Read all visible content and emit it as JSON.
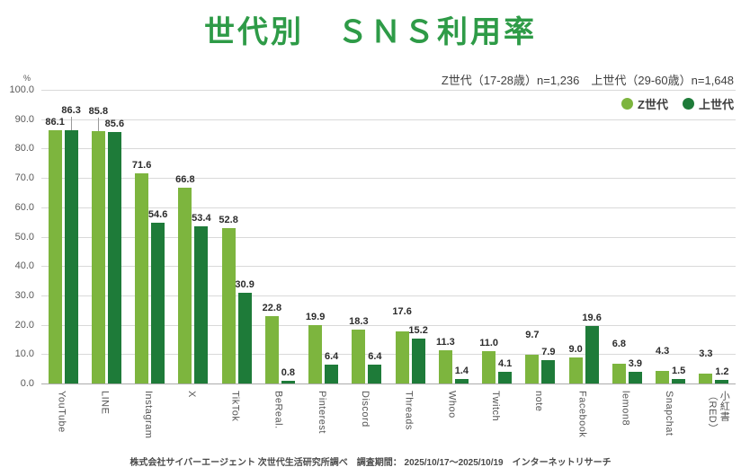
{
  "header": {
    "title": "世代別　ＳＮＳ利用率",
    "subtitle": "Z世代（17-28歳）n=1,236　上世代（29-60歳）n=1,648"
  },
  "colors": {
    "title_green": "#2E9B47",
    "z_generation": "#7DB53E",
    "older_generation": "#1E7B39"
  },
  "chart_data": {
    "type": "bar",
    "title": "世代別　ＳＮＳ利用率",
    "unit": "%",
    "xlabel": "",
    "ylabel": "%",
    "ylim": [
      0,
      100
    ],
    "ytick_step": 10,
    "grid": true,
    "legend_position": "top-right",
    "categories": [
      "YouTube",
      "LINE",
      "Instagram",
      "X",
      "TikTok",
      "BeReal.",
      "Pinterest",
      "Discord",
      "Threads",
      "Whoo",
      "Twitch",
      "note",
      "Facebook",
      "lemon8",
      "Snapchat",
      "小紅書\n（RED）"
    ],
    "series": [
      {
        "name": "Z世代",
        "color": "#7DB53E",
        "values": [
          86.1,
          85.8,
          71.6,
          66.8,
          52.8,
          22.8,
          19.9,
          18.3,
          17.6,
          11.3,
          11.0,
          9.7,
          9.0,
          6.8,
          4.3,
          3.3
        ]
      },
      {
        "name": "上世代",
        "color": "#1E7B39",
        "values": [
          86.3,
          85.6,
          54.6,
          53.4,
          30.9,
          0.8,
          6.4,
          6.4,
          15.2,
          1.4,
          4.1,
          7.9,
          19.6,
          3.9,
          1.5,
          1.2
        ]
      }
    ]
  },
  "footer": {
    "source": "株式会社サイバーエージェント 次世代生活研究所調べ　調査期間： 2025/10/17～2025/10/19　インターネットリサーチ"
  }
}
